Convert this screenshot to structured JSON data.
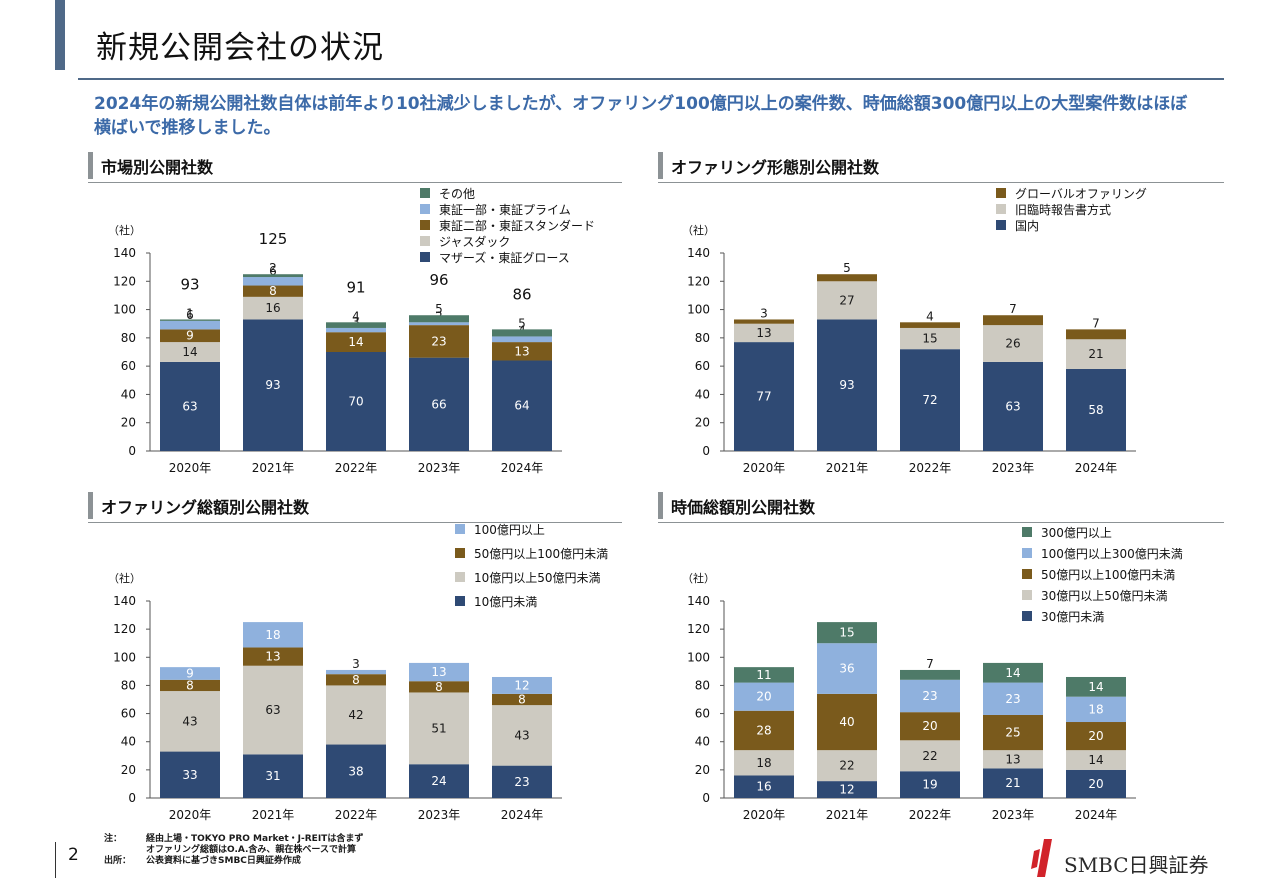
{
  "header": {
    "title": "新規公開会社の状況",
    "lead": "2024年の新規公開社数自体は前年より10社減少しましたが、オファリング100億円以上の案件数、時価総額300億円以上の大型案件数はほぼ横ばいで推移しました。"
  },
  "colors": {
    "navy": "#2f4a74",
    "gray": "#cdcac1",
    "brown": "#7a5a1c",
    "lightblue": "#8fb1dd",
    "green": "#4e7a68",
    "accent": "#3c6aa8"
  },
  "sections": {
    "market": "市場別公開社数",
    "offering_type": "オファリング形態別公開社数",
    "offering_amount": "オファリング総額別公開社数",
    "market_cap": "時価総額別公開社数"
  },
  "chart_data": [
    {
      "type": "bar",
      "stacked": true,
      "title": "市場別公開社数",
      "ylabel": "（社）",
      "ylim": [
        0,
        140
      ],
      "yticks": [
        0,
        20,
        40,
        60,
        80,
        100,
        120,
        140
      ],
      "categories": [
        "2020年",
        "2021年",
        "2022年",
        "2023年",
        "2024年"
      ],
      "totals": [
        93,
        125,
        91,
        96,
        86
      ],
      "series": [
        {
          "name": "マザーズ・東証グロース",
          "color": "#2f4a74",
          "values": [
            63,
            93,
            70,
            66,
            64
          ]
        },
        {
          "name": "ジャスダック",
          "color": "#cdcac1",
          "values": [
            14,
            16,
            0,
            0,
            0
          ]
        },
        {
          "name": "東証二部・東証スタンダード",
          "color": "#7a5a1c",
          "values": [
            9,
            8,
            14,
            23,
            13
          ]
        },
        {
          "name": "東証一部・東証プライム",
          "color": "#8fb1dd",
          "values": [
            6,
            6,
            3,
            2,
            4
          ]
        },
        {
          "name": "その他",
          "color": "#4e7a68",
          "values": [
            1,
            2,
            4,
            5,
            5
          ]
        }
      ],
      "legend_order": [
        "その他",
        "東証一部・東証プライム",
        "東証二部・東証スタンダード",
        "ジャスダック",
        "マザーズ・東証グロース"
      ]
    },
    {
      "type": "bar",
      "stacked": true,
      "title": "オファリング形態別公開社数",
      "ylabel": "（社）",
      "ylim": [
        0,
        140
      ],
      "yticks": [
        0,
        20,
        40,
        60,
        80,
        100,
        120,
        140
      ],
      "categories": [
        "2020年",
        "2021年",
        "2022年",
        "2023年",
        "2024年"
      ],
      "series": [
        {
          "name": "国内",
          "color": "#2f4a74",
          "values": [
            77,
            93,
            72,
            63,
            58
          ]
        },
        {
          "name": "旧臨時報告書方式",
          "color": "#cdcac1",
          "values": [
            13,
            27,
            15,
            26,
            21
          ]
        },
        {
          "name": "グローバルオファリング",
          "color": "#7a5a1c",
          "values": [
            3,
            5,
            4,
            7,
            7
          ]
        }
      ],
      "legend_order": [
        "グローバルオファリング",
        "旧臨時報告書方式",
        "国内"
      ]
    },
    {
      "type": "bar",
      "stacked": true,
      "title": "オファリング総額別公開社数",
      "ylabel": "（社）",
      "ylim": [
        0,
        140
      ],
      "yticks": [
        0,
        20,
        40,
        60,
        80,
        100,
        120,
        140
      ],
      "categories": [
        "2020年",
        "2021年",
        "2022年",
        "2023年",
        "2024年"
      ],
      "series": [
        {
          "name": "10億円未満",
          "color": "#2f4a74",
          "values": [
            33,
            31,
            38,
            24,
            23
          ]
        },
        {
          "name": "10億円以上50億円未満",
          "color": "#cdcac1",
          "values": [
            43,
            63,
            42,
            51,
            43
          ]
        },
        {
          "name": "50億円以上100億円未満",
          "color": "#7a5a1c",
          "values": [
            8,
            13,
            8,
            8,
            8
          ]
        },
        {
          "name": "100億円以上",
          "color": "#8fb1dd",
          "values": [
            9,
            18,
            3,
            13,
            12
          ]
        }
      ],
      "legend_order": [
        "100億円以上",
        "50億円以上100億円未満",
        "10億円以上50億円未満",
        "10億円未満"
      ]
    },
    {
      "type": "bar",
      "stacked": true,
      "title": "時価総額別公開社数",
      "ylabel": "（社）",
      "ylim": [
        0,
        140
      ],
      "yticks": [
        0,
        20,
        40,
        60,
        80,
        100,
        120,
        140
      ],
      "categories": [
        "2020年",
        "2021年",
        "2022年",
        "2023年",
        "2024年"
      ],
      "series": [
        {
          "name": "30億円未満",
          "color": "#2f4a74",
          "values": [
            16,
            12,
            19,
            21,
            20
          ]
        },
        {
          "name": "30億円以上50億円未満",
          "color": "#cdcac1",
          "values": [
            18,
            22,
            22,
            13,
            14
          ]
        },
        {
          "name": "50億円以上100億円未満",
          "color": "#7a5a1c",
          "values": [
            28,
            40,
            20,
            25,
            20
          ]
        },
        {
          "name": "100億円以上300億円未満",
          "color": "#8fb1dd",
          "values": [
            20,
            36,
            23,
            23,
            18
          ]
        },
        {
          "name": "300億円以上",
          "color": "#4e7a68",
          "values": [
            11,
            15,
            7,
            14,
            14
          ]
        }
      ],
      "legend_order": [
        "300億円以上",
        "100億円以上300億円未満",
        "50億円以上100億円未満",
        "30億円以上50億円未満",
        "30億円未満"
      ]
    }
  ],
  "footnotes": [
    {
      "key": "注：",
      "text": "経由上場・TOKYO PRO Market・J-REITは含まず"
    },
    {
      "key": "",
      "text": "オファリング総額はO.A.含み、親在株ベースで計算"
    },
    {
      "key": "出所：",
      "text": "公表資料に基づきSMBC日興証券作成"
    }
  ],
  "page_number": "2",
  "logo": "SMBC日興証券"
}
